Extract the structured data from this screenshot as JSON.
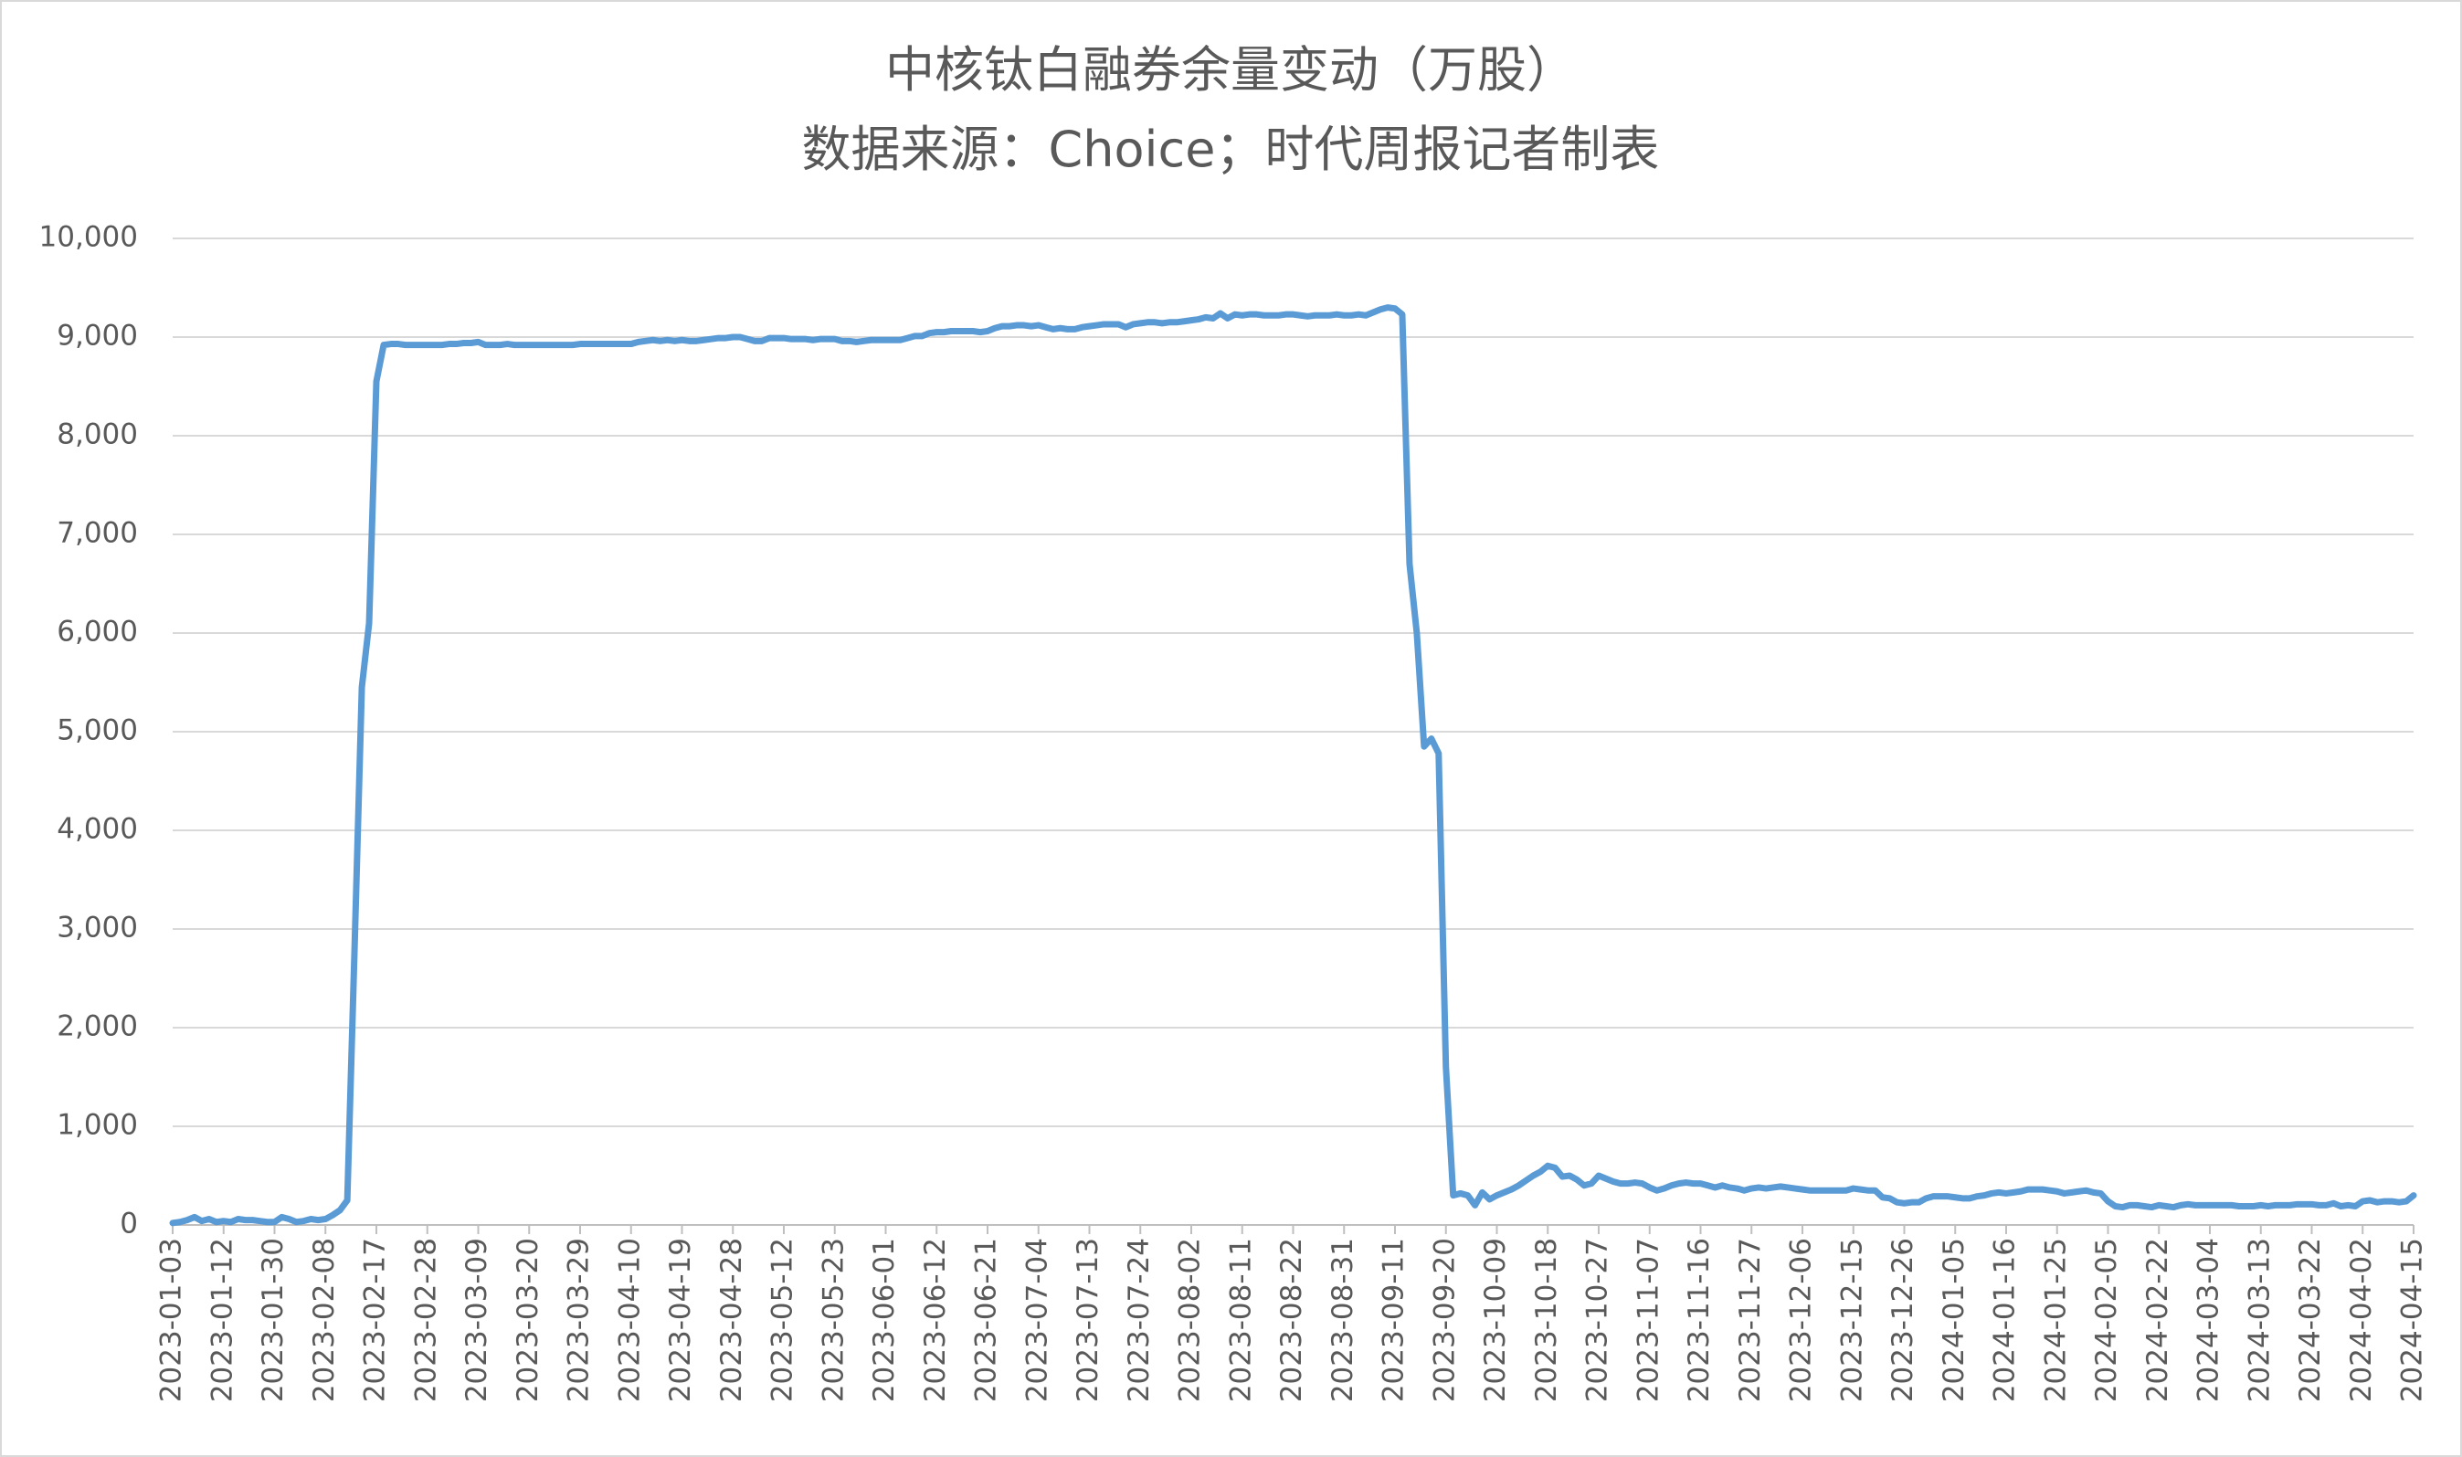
{
  "chart_data": {
    "type": "line",
    "title": "中核钛白融券余量变动（万股）",
    "subtitle": "数据来源：Choice；时代周报记者制表",
    "categories": [
      "2023-01-03",
      null,
      null,
      null,
      null,
      null,
      null,
      "2023-01-12",
      null,
      null,
      null,
      null,
      null,
      null,
      "2023-01-30",
      null,
      null,
      null,
      null,
      null,
      null,
      "2023-02-08",
      null,
      null,
      null,
      null,
      null,
      null,
      "2023-02-17",
      null,
      null,
      null,
      null,
      null,
      null,
      "2023-02-28",
      null,
      null,
      null,
      null,
      null,
      null,
      "2023-03-09",
      null,
      null,
      null,
      null,
      null,
      null,
      "2023-03-20",
      null,
      null,
      null,
      null,
      null,
      null,
      "2023-03-29",
      null,
      null,
      null,
      null,
      null,
      null,
      "2023-04-10",
      null,
      null,
      null,
      null,
      null,
      null,
      "2023-04-19",
      null,
      null,
      null,
      null,
      null,
      null,
      "2023-04-28",
      null,
      null,
      null,
      null,
      null,
      null,
      "2023-05-12",
      null,
      null,
      null,
      null,
      null,
      null,
      "2023-05-23",
      null,
      null,
      null,
      null,
      null,
      null,
      "2023-06-01",
      null,
      null,
      null,
      null,
      null,
      null,
      "2023-06-12",
      null,
      null,
      null,
      null,
      null,
      null,
      "2023-06-21",
      null,
      null,
      null,
      null,
      null,
      null,
      "2023-07-04",
      null,
      null,
      null,
      null,
      null,
      null,
      "2023-07-13",
      null,
      null,
      null,
      null,
      null,
      null,
      "2023-07-24",
      null,
      null,
      null,
      null,
      null,
      null,
      "2023-08-02",
      null,
      null,
      null,
      null,
      null,
      null,
      "2023-08-11",
      null,
      null,
      null,
      null,
      null,
      null,
      "2023-08-22",
      null,
      null,
      null,
      null,
      null,
      null,
      "2023-08-31",
      null,
      null,
      null,
      null,
      null,
      null,
      "2023-09-11",
      null,
      null,
      null,
      null,
      null,
      null,
      "2023-09-20",
      null,
      null,
      null,
      null,
      null,
      null,
      "2023-10-09",
      null,
      null,
      null,
      null,
      null,
      null,
      "2023-10-18",
      null,
      null,
      null,
      null,
      null,
      null,
      "2023-10-27",
      null,
      null,
      null,
      null,
      null,
      null,
      "2023-11-07",
      null,
      null,
      null,
      null,
      null,
      null,
      "2023-11-16",
      null,
      null,
      null,
      null,
      null,
      null,
      "2023-11-27",
      null,
      null,
      null,
      null,
      null,
      null,
      "2023-12-06",
      null,
      null,
      null,
      null,
      null,
      null,
      "2023-12-15",
      null,
      null,
      null,
      null,
      null,
      null,
      "2023-12-26",
      null,
      null,
      null,
      null,
      null,
      null,
      "2024-01-05",
      null,
      null,
      null,
      null,
      null,
      null,
      "2024-01-16",
      null,
      null,
      null,
      null,
      null,
      null,
      "2024-01-25",
      null,
      null,
      null,
      null,
      null,
      null,
      "2024-02-05",
      null,
      null,
      null,
      null,
      null,
      null,
      "2024-02-22",
      null,
      null,
      null,
      null,
      null,
      null,
      "2024-03-04",
      null,
      null,
      null,
      null,
      null,
      null,
      "2024-03-13",
      null,
      null,
      null,
      null,
      null,
      null,
      "2024-03-22",
      null,
      null,
      null,
      null,
      null,
      null,
      "2024-04-02",
      null,
      null,
      null,
      null,
      null,
      null,
      "2024-04-15"
    ],
    "values": [
      20,
      30,
      50,
      80,
      40,
      60,
      30,
      40,
      30,
      60,
      50,
      50,
      40,
      30,
      30,
      80,
      60,
      30,
      40,
      60,
      50,
      60,
      100,
      150,
      250,
      2800,
      5450,
      6100,
      8550,
      8920,
      8930,
      8930,
      8920,
      8920,
      8920,
      8920,
      8920,
      8920,
      8930,
      8930,
      8940,
      8940,
      8950,
      8920,
      8920,
      8920,
      8930,
      8920,
      8920,
      8920,
      8920,
      8920,
      8920,
      8920,
      8920,
      8920,
      8930,
      8930,
      8930,
      8930,
      8930,
      8930,
      8930,
      8930,
      8950,
      8960,
      8970,
      8960,
      8970,
      8960,
      8970,
      8960,
      8960,
      8970,
      8980,
      8990,
      8990,
      9000,
      9000,
      8980,
      8960,
      8960,
      8990,
      8990,
      8990,
      8980,
      8980,
      8980,
      8970,
      8980,
      8980,
      8980,
      8960,
      8960,
      8950,
      8960,
      8970,
      8970,
      8970,
      8970,
      8970,
      8990,
      9010,
      9010,
      9040,
      9050,
      9050,
      9060,
      9060,
      9060,
      9060,
      9050,
      9060,
      9090,
      9110,
      9110,
      9120,
      9120,
      9110,
      9120,
      9100,
      9080,
      9090,
      9080,
      9080,
      9100,
      9110,
      9120,
      9130,
      9130,
      9130,
      9100,
      9130,
      9140,
      9150,
      9150,
      9140,
      9150,
      9150,
      9160,
      9170,
      9180,
      9200,
      9190,
      9240,
      9190,
      9230,
      9220,
      9230,
      9230,
      9220,
      9220,
      9220,
      9230,
      9230,
      9220,
      9210,
      9220,
      9220,
      9220,
      9230,
      9220,
      9220,
      9230,
      9220,
      9250,
      9280,
      9300,
      9290,
      9230,
      6700,
      6000,
      4850,
      4930,
      4780,
      1600,
      300,
      320,
      300,
      200,
      330,
      260,
      300,
      330,
      360,
      400,
      450,
      500,
      540,
      600,
      580,
      490,
      500,
      460,
      400,
      420,
      500,
      470,
      440,
      420,
      420,
      430,
      420,
      380,
      350,
      370,
      400,
      420,
      430,
      420,
      420,
      400,
      380,
      400,
      380,
      370,
      350,
      370,
      380,
      370,
      380,
      390,
      380,
      370,
      360,
      350,
      350,
      350,
      350,
      350,
      350,
      370,
      360,
      350,
      350,
      280,
      270,
      230,
      220,
      230,
      230,
      270,
      290,
      290,
      290,
      280,
      270,
      270,
      290,
      300,
      320,
      330,
      320,
      330,
      340,
      360,
      360,
      360,
      350,
      340,
      320,
      330,
      340,
      350,
      330,
      320,
      240,
      190,
      180,
      200,
      200,
      190,
      180,
      200,
      190,
      180,
      200,
      210,
      200,
      200,
      200,
      200,
      200,
      200,
      190,
      190,
      190,
      200,
      190,
      200,
      200,
      200,
      210,
      210,
      210,
      200,
      200,
      220,
      190,
      200,
      190,
      240,
      250,
      230,
      240,
      240,
      230,
      240,
      300
    ],
    "color": "#5b9bd5",
    "ylim": [
      0,
      10000
    ],
    "yticks": [
      0,
      {
        "value": 1000,
        "label": "1,000"
      },
      {
        "value": 2000,
        "label": "2,000"
      },
      {
        "value": 3000,
        "label": "3,000"
      },
      {
        "value": 4000,
        "label": "4,000"
      },
      {
        "value": 5000,
        "label": "5,000"
      },
      {
        "value": 6000,
        "label": "6,000"
      },
      {
        "value": 7000,
        "label": "7,000"
      },
      {
        "value": 8000,
        "label": "8,000"
      },
      {
        "value": 9000,
        "label": "9,000"
      },
      {
        "value": 10000,
        "label": "10,000"
      }
    ],
    "grid": true
  }
}
